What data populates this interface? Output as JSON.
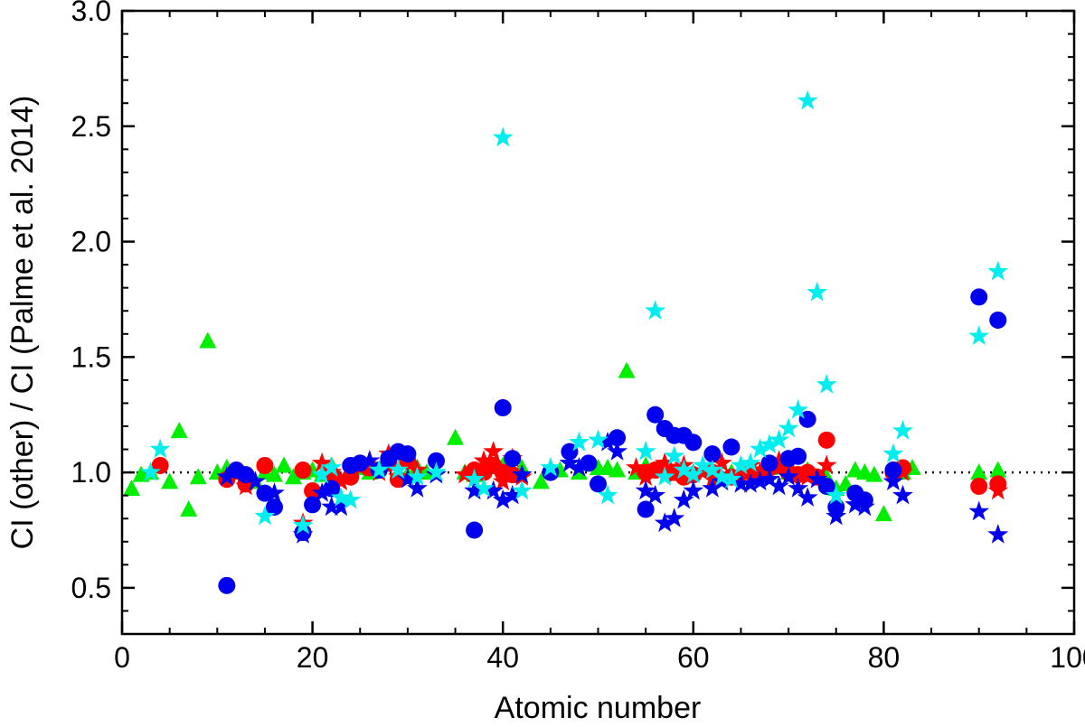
{
  "chart_data": {
    "type": "scatter",
    "xlabel": "Atomic number",
    "ylabel": "CI (other) / CI (Palme et al. 2014)",
    "xlim": [
      0,
      100
    ],
    "ylim": [
      0.3,
      3.0
    ],
    "x_ticks": [
      0,
      20,
      40,
      60,
      80,
      100
    ],
    "x_tick_labels": [
      "0",
      "20",
      "40",
      "60",
      "80",
      "100"
    ],
    "y_ticks": [
      0.5,
      1.0,
      1.5,
      2.0,
      2.5,
      3.0
    ],
    "y_tick_labels": [
      "0.5",
      "1.0",
      "1.5",
      "2.0",
      "2.5",
      "3.0"
    ],
    "reference_line": {
      "y": 1.0,
      "style": "dotted"
    },
    "grid": false,
    "legend": "none",
    "series": [
      {
        "marker": "triangle",
        "color": "#00ee00",
        "x": [
          1,
          2,
          3,
          5,
          6,
          7,
          8,
          9,
          10,
          11,
          12,
          13,
          14,
          15,
          16,
          17,
          18,
          19,
          20,
          21,
          22,
          25,
          26,
          28,
          30,
          31,
          32,
          35,
          36,
          37,
          38,
          40,
          42,
          44,
          46,
          48,
          50,
          51,
          52,
          53,
          54,
          55,
          58,
          60,
          62,
          64,
          66,
          68,
          70,
          72,
          74,
          75,
          76,
          77,
          78,
          79,
          80,
          81,
          82,
          83,
          90,
          92
        ],
        "y": [
          0.93,
          0.99,
          1.0,
          0.96,
          1.18,
          0.84,
          0.98,
          1.57,
          1.0,
          1.02,
          1.0,
          0.98,
          0.96,
          1.0,
          0.99,
          1.03,
          0.98,
          1.0,
          1.01,
          0.99,
          1.03,
          1.02,
          1.0,
          1.04,
          0.99,
          1.02,
          1.0,
          1.15,
          1.0,
          0.99,
          1.01,
          1.03,
          1.02,
          0.96,
          1.01,
          1.0,
          1.02,
          1.02,
          1.01,
          1.44,
          1.0,
          1.03,
          1.0,
          1.0,
          1.01,
          1.0,
          1.0,
          1.02,
          1.0,
          1.01,
          0.98,
          0.93,
          0.95,
          1.01,
          1.0,
          0.99,
          0.82,
          1.01,
          1.0,
          1.02,
          1.0,
          1.01
        ]
      },
      {
        "marker": "circle",
        "color": "#ff0000",
        "x": [
          4,
          11,
          13,
          15,
          19,
          20,
          22,
          24,
          26,
          28,
          29,
          30,
          37,
          38,
          39,
          40,
          41,
          55,
          56,
          57,
          58,
          59,
          60,
          62,
          64,
          66,
          67,
          68,
          69,
          70,
          71,
          72,
          73,
          74,
          81,
          82,
          90,
          92
        ],
        "y": [
          1.03,
          0.97,
          0.95,
          1.03,
          1.01,
          0.92,
          0.99,
          0.98,
          1.02,
          1.04,
          0.97,
          1.05,
          1.01,
          1.0,
          1.03,
          1.0,
          0.99,
          1.0,
          1.01,
          1.02,
          1.0,
          0.98,
          0.99,
          1.0,
          0.98,
          1.0,
          0.99,
          1.02,
          1.03,
          1.0,
          0.99,
          1.0,
          0.98,
          1.14,
          1.0,
          1.02,
          0.94,
          0.95
        ]
      },
      {
        "marker": "star",
        "color": "#ff0000",
        "x": [
          12,
          13,
          19,
          21,
          22,
          23,
          25,
          26,
          27,
          28,
          29,
          31,
          36,
          38,
          39,
          40,
          41,
          42,
          54,
          55,
          57,
          58,
          59,
          61,
          62,
          63,
          65,
          66,
          67,
          68,
          69,
          70,
          72,
          73,
          74,
          82,
          92
        ],
        "y": [
          0.99,
          0.94,
          0.78,
          1.04,
          1.0,
          0.96,
          1.02,
          1.05,
          1.0,
          1.08,
          0.98,
          1.01,
          0.99,
          1.05,
          1.09,
          0.96,
          1.06,
          0.98,
          1.02,
          0.98,
          1.04,
          0.99,
          1.03,
          1.0,
          0.97,
          1.04,
          0.98,
          1.03,
          1.0,
          0.97,
          1.05,
          1.01,
          0.98,
          0.97,
          1.03,
          1.0,
          0.92
        ]
      },
      {
        "marker": "circle",
        "color": "#0000ee",
        "x": [
          11,
          12,
          13,
          15,
          16,
          19,
          20,
          22,
          24,
          25,
          27,
          28,
          29,
          30,
          33,
          37,
          40,
          41,
          45,
          47,
          49,
          50,
          52,
          55,
          56,
          57,
          58,
          59,
          60,
          62,
          64,
          68,
          70,
          71,
          72,
          74,
          75,
          77,
          78,
          81,
          90,
          92
        ],
        "y": [
          0.51,
          1.01,
          0.99,
          0.91,
          0.85,
          0.74,
          0.86,
          0.93,
          1.03,
          1.04,
          1.01,
          1.06,
          1.09,
          1.08,
          1.05,
          0.75,
          1.28,
          1.06,
          1.0,
          1.09,
          1.04,
          0.95,
          1.15,
          0.84,
          1.25,
          1.19,
          1.16,
          1.16,
          1.13,
          1.08,
          1.11,
          1.04,
          1.06,
          1.07,
          1.23,
          0.94,
          0.85,
          0.91,
          0.88,
          1.01,
          1.76,
          1.66
        ]
      },
      {
        "marker": "star",
        "color": "#0000ee",
        "x": [
          11,
          14,
          16,
          19,
          21,
          22,
          23,
          26,
          30,
          31,
          33,
          37,
          39,
          40,
          41,
          42,
          47,
          48,
          51,
          52,
          55,
          56,
          57,
          58,
          59,
          60,
          62,
          63,
          65,
          66,
          67,
          68,
          69,
          70,
          71,
          72,
          73,
          75,
          77,
          78,
          81,
          82,
          90,
          92
        ],
        "y": [
          0.98,
          0.96,
          0.91,
          0.73,
          0.91,
          0.85,
          0.85,
          1.05,
          0.97,
          0.93,
          0.99,
          0.92,
          0.92,
          0.88,
          0.9,
          0.99,
          1.04,
          1.02,
          1.13,
          1.09,
          0.92,
          0.9,
          0.78,
          0.8,
          0.88,
          0.92,
          0.93,
          0.96,
          0.95,
          0.95,
          0.96,
          0.97,
          0.94,
          0.98,
          0.93,
          0.89,
          0.97,
          0.81,
          0.86,
          0.85,
          0.96,
          0.9,
          0.83,
          0.73
        ]
      },
      {
        "marker": "star",
        "color": "#00eeee",
        "x": [
          3,
          4,
          15,
          19,
          21,
          22,
          23,
          24,
          27,
          29,
          31,
          33,
          37,
          38,
          40,
          42,
          45,
          48,
          50,
          51,
          55,
          56,
          57,
          58,
          59,
          60,
          61,
          62,
          63,
          64,
          65,
          66,
          67,
          68,
          69,
          70,
          71,
          72,
          73,
          74,
          75,
          81,
          82,
          90,
          92
        ],
        "y": [
          1.0,
          1.1,
          0.81,
          0.77,
          0.99,
          1.02,
          0.89,
          0.88,
          1.01,
          1.01,
          0.98,
          1.0,
          0.97,
          0.93,
          2.45,
          0.92,
          1.02,
          1.13,
          1.14,
          0.9,
          1.09,
          1.7,
          0.98,
          1.07,
          1.01,
          0.99,
          1.03,
          1.01,
          0.98,
          0.97,
          1.03,
          1.04,
          1.1,
          1.12,
          1.14,
          1.19,
          1.27,
          2.61,
          1.78,
          1.38,
          0.9,
          1.08,
          1.18,
          1.59,
          1.87
        ]
      }
    ]
  }
}
